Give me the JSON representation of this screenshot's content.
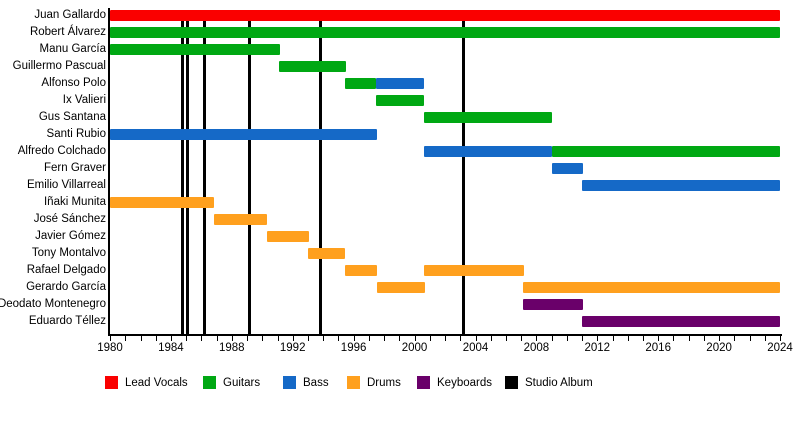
{
  "chart_data": {
    "type": "bar",
    "variant": "horizontal-interval-gantt-timeline",
    "description": "Band members timeline: colored bars show each member's tenure per instrument; black vertical lines mark studio albums.",
    "x_axis": {
      "min": 1980,
      "max": 2024,
      "tick_interval_years": 1,
      "label_interval_years": 4,
      "tick_labels": [
        "1980",
        "1984",
        "1988",
        "1992",
        "1996",
        "2000",
        "2004",
        "2008",
        "2012",
        "2016",
        "2020",
        "2024"
      ]
    },
    "colors": {
      "vocals": "#fa0000",
      "guitars": "#00a813",
      "bass": "#1569c7",
      "drums": "#ffa01e",
      "keyboards": "#6a006a",
      "album": "#000000"
    },
    "legend": [
      {
        "label": "Lead Vocals",
        "role": "vocals",
        "color": "#fa0000"
      },
      {
        "label": "Guitars",
        "role": "guitars",
        "color": "#00a813"
      },
      {
        "label": "Bass",
        "role": "bass",
        "color": "#1569c7"
      },
      {
        "label": "Drums",
        "role": "drums",
        "color": "#ffa01e"
      },
      {
        "label": "Keyboards",
        "role": "keyboards",
        "color": "#6a006a"
      },
      {
        "label": "Studio Album",
        "role": "album",
        "color": "#000000"
      }
    ],
    "members": [
      {
        "name": "Juan Gallardo",
        "stints": [
          {
            "role": "vocals",
            "start": 1980,
            "end": 2024
          }
        ]
      },
      {
        "name": "Robert Álvarez",
        "stints": [
          {
            "role": "guitars",
            "start": 1980,
            "end": 2024
          }
        ]
      },
      {
        "name": "Manu García",
        "stints": [
          {
            "role": "guitars",
            "start": 1980,
            "end": 1991.15
          }
        ]
      },
      {
        "name": "Guillermo Pascual",
        "stints": [
          {
            "role": "guitars",
            "start": 1991.1,
            "end": 1995.5
          }
        ]
      },
      {
        "name": "Alfonso Polo",
        "stints": [
          {
            "role": "guitars",
            "start": 1995.45,
            "end": 1997.45
          },
          {
            "role": "bass",
            "start": 1997.45,
            "end": 2000.65
          }
        ]
      },
      {
        "name": "Ix Valieri",
        "stints": [
          {
            "role": "guitars",
            "start": 1997.45,
            "end": 2000.65
          }
        ]
      },
      {
        "name": "Gus Santana",
        "stints": [
          {
            "role": "guitars",
            "start": 2000.6,
            "end": 2009.0
          }
        ]
      },
      {
        "name": "Santi Rubio",
        "stints": [
          {
            "role": "bass",
            "start": 1980,
            "end": 1997.5
          }
        ]
      },
      {
        "name": "Alfredo Colchado",
        "stints": [
          {
            "role": "bass",
            "start": 2000.6,
            "end": 2009.0
          },
          {
            "role": "guitars",
            "start": 2009.0,
            "end": 2024
          }
        ]
      },
      {
        "name": "Fern Graver",
        "stints": [
          {
            "role": "bass",
            "start": 2009.0,
            "end": 2011.05
          }
        ]
      },
      {
        "name": "Emilio Villarreal",
        "stints": [
          {
            "role": "bass",
            "start": 2011.0,
            "end": 2024
          }
        ]
      },
      {
        "name": "Iñaki Munita",
        "stints": [
          {
            "role": "drums",
            "start": 1980,
            "end": 1986.85
          }
        ]
      },
      {
        "name": "José Sánchez",
        "stints": [
          {
            "role": "drums",
            "start": 1986.85,
            "end": 1990.3
          }
        ]
      },
      {
        "name": "Javier Gómez",
        "stints": [
          {
            "role": "drums",
            "start": 1990.3,
            "end": 1993.05
          }
        ]
      },
      {
        "name": "Tony Montalvo",
        "stints": [
          {
            "role": "drums",
            "start": 1993.0,
            "end": 1995.4
          }
        ]
      },
      {
        "name": "Rafael Delgado",
        "stints": [
          {
            "role": "drums",
            "start": 1995.4,
            "end": 1997.5
          },
          {
            "role": "drums",
            "start": 2000.6,
            "end": 2007.2
          }
        ]
      },
      {
        "name": "Gerardo García",
        "stints": [
          {
            "role": "drums",
            "start": 1997.5,
            "end": 2000.65
          },
          {
            "role": "drums",
            "start": 2007.15,
            "end": 2024
          }
        ]
      },
      {
        "name": "Deodato Montenegro",
        "stints": [
          {
            "role": "keyboards",
            "start": 2007.15,
            "end": 2011.05
          }
        ]
      },
      {
        "name": "Eduardo Téllez",
        "stints": [
          {
            "role": "keyboards",
            "start": 2011.0,
            "end": 2024
          }
        ]
      }
    ],
    "studio_albums_years": [
      1984.75,
      1985.1,
      1986.2,
      1989.15,
      1993.8,
      2003.2
    ],
    "layout_hints": {
      "grid": false,
      "legend_position": "bottom",
      "bars_drawn_over_album_lines": true
    }
  }
}
